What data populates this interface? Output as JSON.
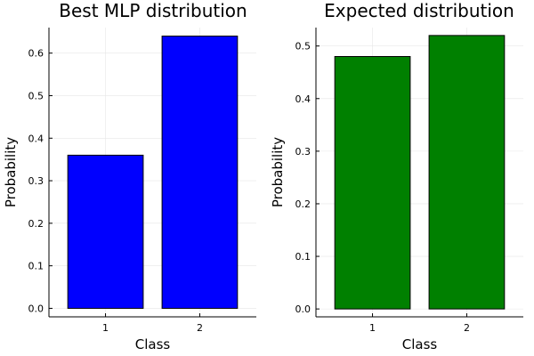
{
  "chart_data": [
    {
      "type": "bar",
      "title": "Best MLP distribution",
      "xlabel": "Class",
      "ylabel": "Probability",
      "categories": [
        "1",
        "2"
      ],
      "values": [
        0.36,
        0.64
      ],
      "ylim": [
        -0.02,
        0.66
      ],
      "yticks": [
        0.0,
        0.1,
        0.2,
        0.3,
        0.4,
        0.5,
        0.6
      ],
      "ytick_labels": [
        "0.0",
        "0.1",
        "0.2",
        "0.3",
        "0.4",
        "0.5",
        "0.6"
      ],
      "bar_color": "#0000ff",
      "grid": true,
      "legend": "none"
    },
    {
      "type": "bar",
      "title": "Expected distribution",
      "xlabel": "Class",
      "ylabel": "Probability",
      "categories": [
        "1",
        "2"
      ],
      "values": [
        0.48,
        0.52
      ],
      "ylim": [
        -0.015,
        0.535
      ],
      "yticks": [
        0.0,
        0.1,
        0.2,
        0.3,
        0.4,
        0.5
      ],
      "ytick_labels": [
        "0.0",
        "0.1",
        "0.2",
        "0.3",
        "0.4",
        "0.5"
      ],
      "bar_color": "#008000",
      "grid": true,
      "legend": "none"
    }
  ]
}
